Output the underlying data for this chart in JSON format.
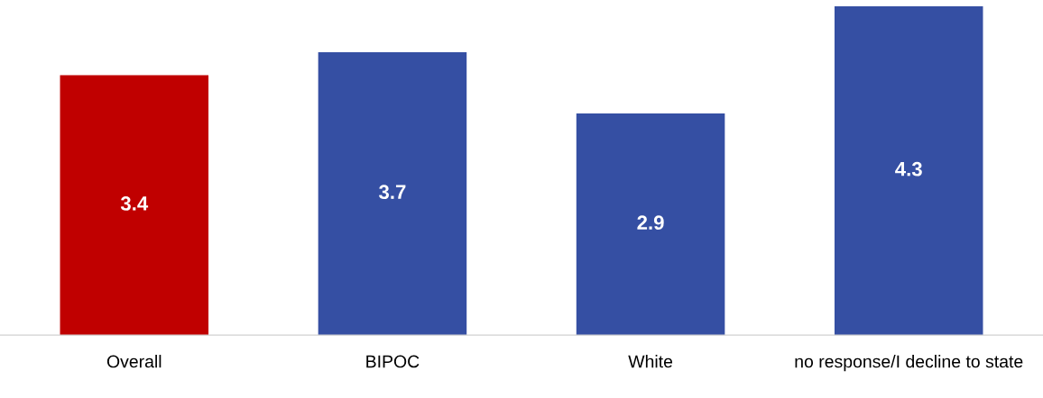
{
  "chart_data": {
    "type": "bar",
    "categories": [
      "Overall",
      "BIPOC",
      "White",
      "no response/I decline to state"
    ],
    "values": [
      3.4,
      3.7,
      2.9,
      4.3
    ],
    "colors": [
      "#c00000",
      "#354fa3",
      "#354fa3",
      "#354fa3"
    ],
    "data_labels": true
  }
}
